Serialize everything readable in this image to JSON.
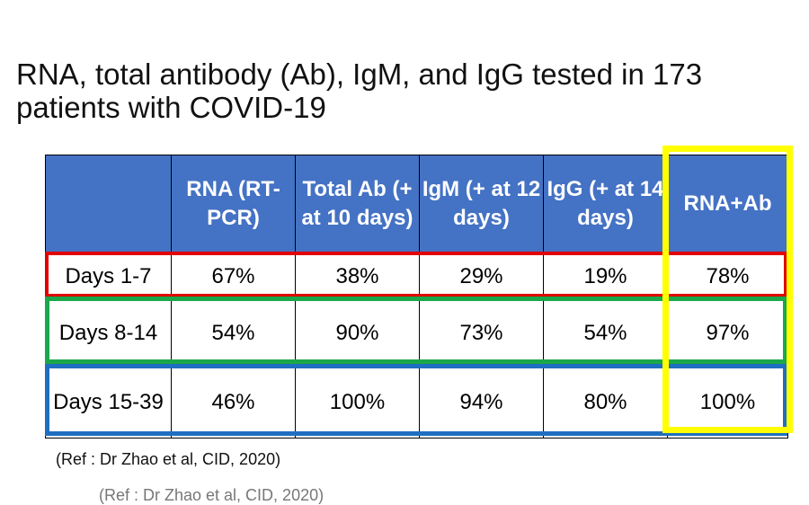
{
  "title": "RNA, total antibody (Ab), IgM, and IgG tested in 173 patients with COVID-19",
  "table": {
    "headers": [
      "",
      "RNA (RT-PCR)",
      "Total Ab (+ at 10 days)",
      "IgM (+ at 12 days)",
      "IgG (+ at 14 days)",
      "RNA+Ab"
    ],
    "rows": [
      [
        "Days 1-7",
        "67%",
        "38%",
        "29%",
        "19%",
        "78%"
      ],
      [
        "Days 8-14",
        "54%",
        "90%",
        "73%",
        "54%",
        "97%"
      ],
      [
        "Days 15-39",
        "46%",
        "100%",
        "94%",
        "80%",
        "100%"
      ]
    ]
  },
  "highlight_colors": {
    "row1": "#e00000",
    "row2": "#1aa84a",
    "row3": "#1f6fc0",
    "rna_ab_column": "#ffff00",
    "header_fill": "#4472c4"
  },
  "reference": "(Ref : Dr Zhao et al, CID, 2020)",
  "reference_ghost": "(Ref : Dr Zhao et al, CID, 2020)"
}
